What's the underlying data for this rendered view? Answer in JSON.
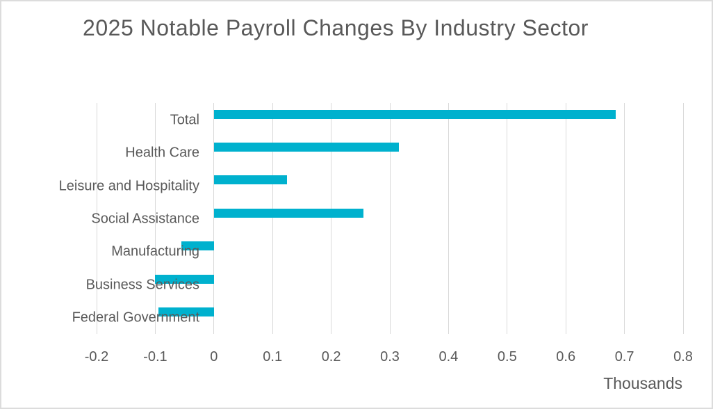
{
  "chart_data": {
    "type": "bar",
    "orientation": "horizontal",
    "title": "2025 Notable Payroll Changes By Industry Sector",
    "categories": [
      "Total",
      "Health Care",
      "Leisure and Hospitality",
      "Social Assistance",
      "Manufacturing",
      "Business Services",
      "Federal Government"
    ],
    "values": [
      0.685,
      0.315,
      0.125,
      0.255,
      -0.055,
      -0.1,
      -0.095
    ],
    "xlabel": "Thousands",
    "ylabel": "",
    "xlim": [
      -0.2,
      0.8
    ],
    "xticks": [
      -0.2,
      -0.1,
      0,
      0.1,
      0.2,
      0.3,
      0.4,
      0.5,
      0.6,
      0.7,
      0.8
    ],
    "xtick_labels": [
      "-0.2",
      "-0.1",
      "0",
      "0.1",
      "0.2",
      "0.3",
      "0.4",
      "0.5",
      "0.6",
      "0.7",
      "0.8"
    ],
    "grid": true,
    "legend": false,
    "colors": {
      "bar": "#00b1ce",
      "text": "#595959",
      "gridline": "#d9d9d9",
      "background": "#ffffff"
    }
  }
}
